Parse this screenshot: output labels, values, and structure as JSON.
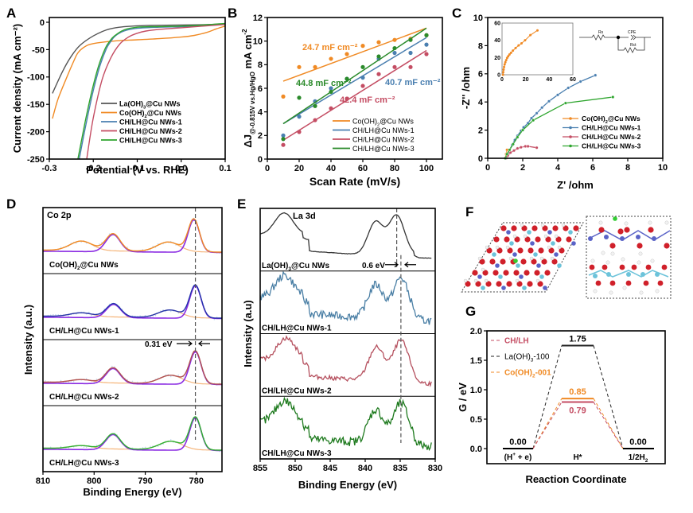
{
  "chart_data": [
    {
      "panel": "A",
      "type": "line",
      "xlabel": "Potential (V vs. RHE)",
      "ylabel": "Current density (mA cm⁻²)",
      "xlim": [
        -0.3,
        0.1
      ],
      "ylim": [
        -250,
        10
      ],
      "xticks": [
        "-0.3",
        "-0.2",
        "-0.1",
        "0.0",
        "0.1"
      ],
      "yticks": [
        "0",
        "-50",
        "-100",
        "-150",
        "-200",
        "-250"
      ],
      "xtick_values": [
        -0.3,
        -0.2,
        -0.1,
        0.0,
        0.1
      ],
      "ytick_values": [
        0,
        -50,
        -100,
        -150,
        -200,
        -250
      ],
      "legend_position": "bottom-right",
      "series": [
        {
          "name": "La(OH)₃@Cu NWs",
          "color": "#555555",
          "x": [
            -0.293,
            -0.27,
            -0.25,
            -0.23,
            -0.2,
            -0.17,
            -0.14,
            -0.11,
            -0.08,
            -0.05,
            0.0,
            0.05,
            0.1
          ],
          "y": [
            -130,
            -90,
            -62,
            -42,
            -25,
            -14,
            -9,
            -7,
            -6,
            -5.5,
            -5,
            -4.5,
            -3
          ]
        },
        {
          "name": "Co(OH)₂@Cu NWs",
          "color": "#F08A24",
          "x": [
            -0.293,
            -0.28,
            -0.26,
            -0.245,
            -0.235,
            -0.22,
            -0.2,
            -0.15,
            -0.1,
            -0.05,
            0.0,
            0.03,
            0.06,
            0.08,
            0.1
          ],
          "y": [
            -176,
            -140,
            -100,
            -72,
            -56,
            -45,
            -39,
            -34,
            -32,
            -30,
            -27,
            -24,
            -18,
            -12,
            -7
          ]
        },
        {
          "name": "CH/LH@Cu NWs-1",
          "color": "#4A7FB0",
          "x": [
            -0.232,
            -0.215,
            -0.2,
            -0.185,
            -0.17,
            -0.16,
            -0.15,
            -0.13,
            -0.1,
            -0.05,
            0.0,
            0.05,
            0.1
          ],
          "y": [
            -250,
            -180,
            -125,
            -80,
            -48,
            -35,
            -25,
            -16,
            -11,
            -9,
            -8,
            -6,
            -3
          ]
        },
        {
          "name": "CH/LH@Cu NWs-2",
          "color": "#C44D63",
          "x": [
            -0.215,
            -0.2,
            -0.18,
            -0.16,
            -0.14,
            -0.12,
            -0.1,
            -0.08,
            -0.05,
            0.0,
            0.05,
            0.1
          ],
          "y": [
            -250,
            -175,
            -105,
            -65,
            -40,
            -27,
            -20,
            -16,
            -13,
            -10,
            -7,
            -4
          ]
        },
        {
          "name": "CH/LH@Cu NWs-3",
          "color": "#2EA52E",
          "x": [
            -0.235,
            -0.218,
            -0.203,
            -0.188,
            -0.173,
            -0.163,
            -0.152,
            -0.13,
            -0.1,
            -0.05,
            0.0,
            0.05,
            0.1
          ],
          "y": [
            -250,
            -180,
            -125,
            -80,
            -48,
            -35,
            -25,
            -14,
            -9,
            -8,
            -7,
            -5,
            -2
          ]
        }
      ]
    },
    {
      "panel": "B",
      "type": "scatter",
      "xlabel": "Scan Rate (mV/s)",
      "ylabel": "ΔJ@-0.815V vs.Hg/HgO mA cm⁻²",
      "ylabel_main": "ΔJ",
      "ylabel_sub": "@-0.815V vs.Hg/HgO",
      "ylabel_unit": " mA cm",
      "ylabel_sup": "-2",
      "xlim": [
        0,
        110
      ],
      "ylim": [
        0,
        12
      ],
      "xticks": [
        "0",
        "20",
        "40",
        "60",
        "80",
        "100"
      ],
      "yticks": [
        "0",
        "2",
        "4",
        "6",
        "8",
        "10",
        "12"
      ],
      "xtick_values": [
        0,
        20,
        40,
        60,
        80,
        100
      ],
      "ytick_values": [
        0,
        2,
        4,
        6,
        8,
        10,
        12
      ],
      "legend_position": "bottom-right",
      "x": [
        10,
        20,
        30,
        40,
        50,
        60,
        70,
        80,
        90,
        100
      ],
      "series": [
        {
          "name": "Co(OH)₂@Cu NWs",
          "color": "#F08A24",
          "values": [
            5.3,
            7.8,
            7.8,
            8.5,
            8.9,
            9.6,
            9.9,
            10.1,
            10.2,
            10.5
          ],
          "fit": [
            6.6,
            11.1
          ],
          "annotation": "24.7 mF cm⁻²"
        },
        {
          "name": "CH/LH@Cu NWs-1",
          "color": "#4A7FB0",
          "values": [
            2.0,
            3.6,
            4.9,
            6.0,
            6.8,
            6.9,
            8.5,
            9.0,
            9.0,
            9.7
          ],
          "fit": [
            3.0,
            10.3
          ],
          "annotation": "40.7 mF cm⁻²"
        },
        {
          "name": "CH/LH@Cu NWs-2",
          "color": "#C44D63",
          "values": [
            1.2,
            2.3,
            3.3,
            4.3,
            5.1,
            6.2,
            7.2,
            7.8,
            7.8,
            8.9
          ],
          "fit": [
            1.6,
            9.2
          ],
          "annotation": "42.4 mF cm⁻²"
        },
        {
          "name": "CH/LH@Cu NWs-3",
          "color": "#2A8A2A",
          "values": [
            1.7,
            5.2,
            4.5,
            5.7,
            6.8,
            7.8,
            8.7,
            9.4,
            10.1,
            10.5
          ],
          "fit": [
            3.0,
            11.1
          ],
          "annotation": "44.8 mF cm⁻²"
        }
      ]
    },
    {
      "panel": "C",
      "type": "line",
      "xlabel": "Z' /ohm",
      "ylabel": "-Z'' /ohm",
      "xlim": [
        0,
        10
      ],
      "ylim": [
        0,
        10
      ],
      "xticks": [
        "0",
        "2",
        "4",
        "6",
        "8",
        "10"
      ],
      "yticks": [
        "0",
        "2",
        "4",
        "6",
        "8",
        "10"
      ],
      "xtick_values": [
        0,
        2,
        4,
        6,
        8,
        10
      ],
      "ytick_values": [
        0,
        2,
        4,
        6,
        8,
        10
      ],
      "legend_position": "bottom-right",
      "series": [
        {
          "name": "Co(OH)₂@Cu NWs",
          "color": "#F08A24",
          "x": [
            1.0,
            1.05,
            1.1
          ],
          "y": [
            0.0,
            0.3,
            0.6
          ]
        },
        {
          "name": "CH/LH@Cu NWs-1",
          "color": "#4A7FB0",
          "x": [
            1.05,
            1.15,
            1.25,
            1.4,
            1.55,
            1.7,
            1.9,
            2.05,
            2.3,
            2.5,
            2.8,
            3.1,
            3.5,
            4.0,
            4.6,
            5.3,
            6.15
          ],
          "y": [
            0.0,
            0.3,
            0.6,
            0.95,
            1.3,
            1.6,
            1.95,
            2.2,
            2.5,
            2.85,
            3.2,
            3.6,
            4.05,
            4.5,
            5.0,
            5.45,
            5.9
          ]
        },
        {
          "name": "CH/LH@Cu NWs-2",
          "color": "#C44D63",
          "x": [
            1.05,
            1.15,
            1.3,
            1.5,
            1.7,
            1.9,
            2.15,
            2.3,
            2.8
          ],
          "y": [
            0.0,
            0.2,
            0.4,
            0.55,
            0.7,
            0.78,
            0.85,
            0.85,
            0.75
          ]
        },
        {
          "name": "CH/LH@Cu NWs-3",
          "color": "#2EA52E",
          "x": [
            1.0,
            1.1,
            1.25,
            1.45,
            1.7,
            2.0,
            2.6,
            4.45,
            7.15
          ],
          "y": [
            0.0,
            0.3,
            0.6,
            1.0,
            1.5,
            2.0,
            2.7,
            3.92,
            4.35
          ]
        }
      ],
      "inset": {
        "xlim": [
          0,
          60
        ],
        "ylim": [
          0,
          60
        ],
        "xticks": [
          "0",
          "20",
          "40",
          "60"
        ],
        "yticks": [
          "0",
          "20",
          "40",
          "60"
        ],
        "xtick_values": [
          0,
          20,
          40,
          60
        ],
        "ytick_values": [
          0,
          20,
          40,
          60
        ],
        "series": {
          "name": "Co(OH)₂@Cu NWs",
          "color": "#F08A24",
          "x": [
            0.8,
            1,
            1.3,
            1.7,
            2.2,
            2.8,
            3.5,
            4.3,
            5.2,
            6.3,
            7.6,
            9.2,
            11.5,
            14,
            16.5,
            19.5,
            24,
            30
          ],
          "y": [
            0,
            3,
            6,
            9,
            12,
            14.5,
            17,
            19.5,
            21.5,
            23.5,
            25.5,
            28,
            31,
            34,
            36.5,
            40,
            46,
            51.5
          ]
        }
      },
      "circuit_labels": {
        "rs": "Rs",
        "cpe": "CPE",
        "rct": "Rct"
      }
    },
    {
      "panel": "D",
      "type": "line",
      "title": "Co 2p",
      "xlabel": "Binding Energy (eV)",
      "ylabel": "Intensity (a.u.)",
      "xlim": [
        810,
        775
      ],
      "xticks": [
        "810",
        "800",
        "790",
        "780"
      ],
      "xtick_values": [
        810,
        800,
        790,
        780
      ],
      "reference_line_eV": 780.2,
      "shift_annotation": "0.31 eV",
      "subplots": [
        {
          "label": "Co(OH)₂@Cu NWs",
          "envelope_color": "#F08A24",
          "peaks_eV": [
            802.5,
            796.3,
            785.5,
            780.5
          ]
        },
        {
          "label": "CH/LH@Cu NWs-1",
          "envelope_color": "#2233AA",
          "peaks_eV": [
            802.5,
            796.2,
            785.2,
            780.2
          ]
        },
        {
          "label": "CH/LH@Cu NWs-2",
          "envelope_color": "#B05050",
          "peaks_eV": [
            802.5,
            796.3,
            785.0,
            780.2
          ]
        },
        {
          "label": "CH/LH@Cu NWs-3",
          "envelope_color": "#30B030",
          "peaks_eV": [
            802.5,
            796.3,
            785.0,
            780.2
          ]
        }
      ]
    },
    {
      "panel": "E",
      "type": "line",
      "title": "La 3d",
      "xlabel": "Binding Energy (eV)",
      "ylabel": "Intensity (a.u)",
      "xlim": [
        855,
        830
      ],
      "xticks": [
        "855",
        "850",
        "845",
        "840",
        "835",
        "830"
      ],
      "xtick_values": [
        855,
        850,
        845,
        840,
        835,
        830
      ],
      "reference_lines_eV": [
        835.5,
        834.9
      ],
      "shift_annotation": "0.6 eV",
      "subplots": [
        {
          "label": "La(OH)₃@Cu NWs",
          "color": "#333333",
          "peaks_eV": [
            851.6,
            838.5,
            835.5
          ]
        },
        {
          "label": "CH/LH@Cu NWs-1",
          "color": "#4A7FA5",
          "peaks_eV": [
            851.5,
            838.5,
            834.9
          ]
        },
        {
          "label": "CH/LH@Cu NWs-2",
          "color": "#B5505E",
          "peaks_eV": [
            851.3,
            838.4,
            834.9
          ]
        },
        {
          "label": "CH/LH@Cu NWs-3",
          "color": "#1E7A1E",
          "peaks_eV": [
            851.5,
            838.5,
            834.9
          ]
        }
      ]
    },
    {
      "panel": "G",
      "type": "line",
      "xlabel": "Reaction Coordinate",
      "ylabel": "G / eV",
      "ylim": [
        -0.25,
        2.0
      ],
      "yticks": [
        "0.0",
        "0.5",
        "1.0",
        "1.5",
        "2.0"
      ],
      "ytick_values": [
        0.0,
        0.5,
        1.0,
        1.5,
        2.0
      ],
      "states": [
        "(H⁺ + e)",
        "H*",
        "1/2H₂"
      ],
      "legend_position": "top-left",
      "series": [
        {
          "name": "CH/LH",
          "color": "#C44D63",
          "values": [
            0.0,
            0.79,
            0.0
          ]
        },
        {
          "name": "La(OH)₃-100",
          "color": "#222222",
          "values": [
            0.0,
            1.75,
            0.0
          ]
        },
        {
          "name": "Co(OH)₂-001",
          "color": "#F08A24",
          "values": [
            0.0,
            0.85,
            0.0
          ]
        }
      ],
      "value_labels": [
        "0.00",
        "1.75",
        "0.85",
        "0.79",
        "0.00"
      ]
    }
  ],
  "panel_letters": [
    "A",
    "B",
    "C",
    "D",
    "E",
    "F",
    "G"
  ],
  "panel_F": {
    "description": "DFT atomic structure models: top view and side view"
  }
}
